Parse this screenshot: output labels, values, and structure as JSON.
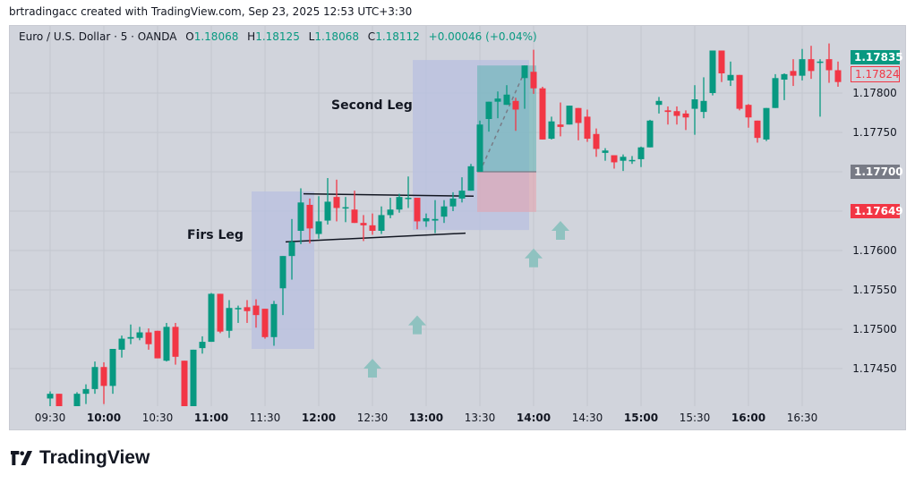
{
  "caption": "brtradingacc created with TradingView.com, Sep 23, 2025 12:53 UTC+3:30",
  "legend": {
    "symbol": "Euro / U.S. Dollar · 5 · OANDA",
    "o_label": "O",
    "o": "1.18068",
    "h_label": "H",
    "h": "1.18125",
    "l_label": "L",
    "l": "1.18068",
    "c_label": "C",
    "c": "1.18112",
    "change": "+0.00046 (+0.04%)"
  },
  "annotations": {
    "first_leg": "Firs Leg",
    "second_leg": "Second Leg"
  },
  "price_tags": {
    "last": "1.17835",
    "prev": "1.17824",
    "entry": "1.17700",
    "stop": "1.17649"
  },
  "colors": {
    "up": "#089981",
    "down": "#f23645",
    "background": "#d1d4dc",
    "grid": "#c3c6ce",
    "leg_box": "#b8c0e0",
    "target_zone": "#5fb3b3",
    "stop_zone": "#e8a0ab",
    "arrow": "#8fc2c0",
    "entry_tag": "#787b86"
  },
  "brand": "TradingView",
  "chart_data": {
    "type": "candlestick",
    "title": "Euro / U.S. Dollar · 5 · OANDA",
    "xlabel": "",
    "ylabel": "",
    "y_ticks": [
      "1.17800",
      "1.17750",
      "1.17700",
      "1.17650",
      "1.17600",
      "1.17550",
      "1.17500",
      "1.17450"
    ],
    "ylim": [
      1.174,
      1.1786
    ],
    "x_ticks": [
      {
        "label": "09:30",
        "bold": false
      },
      {
        "label": "10:00",
        "bold": true
      },
      {
        "label": "10:30",
        "bold": false
      },
      {
        "label": "11:00",
        "bold": true
      },
      {
        "label": "11:30",
        "bold": false
      },
      {
        "label": "12:00",
        "bold": true
      },
      {
        "label": "12:30",
        "bold": false
      },
      {
        "label": "13:00",
        "bold": true
      },
      {
        "label": "13:30",
        "bold": false
      },
      {
        "label": "14:00",
        "bold": true
      },
      {
        "label": "14:30",
        "bold": false
      },
      {
        "label": "15:00",
        "bold": true
      },
      {
        "label": "15:30",
        "bold": false
      },
      {
        "label": "16:00",
        "bold": true
      },
      {
        "label": "16:30",
        "bold": false
      }
    ],
    "candles": [
      {
        "t": "09:30",
        "o": 1.17412,
        "h": 1.17421,
        "l": 1.174,
        "c": 1.17418
      },
      {
        "t": "09:35",
        "o": 1.17418,
        "h": 1.17418,
        "l": 1.174,
        "c": 1.174
      },
      {
        "t": "09:40",
        "o": null,
        "h": null,
        "l": null,
        "c": null
      },
      {
        "t": "09:45",
        "o": 1.174,
        "h": 1.1742,
        "l": 1.174,
        "c": 1.17418
      },
      {
        "t": "09:50",
        "o": 1.17418,
        "h": 1.1743,
        "l": 1.17405,
        "c": 1.17424
      },
      {
        "t": "09:55",
        "o": 1.17424,
        "h": 1.17459,
        "l": 1.17418,
        "c": 1.17452
      },
      {
        "t": "10:00",
        "o": 1.17452,
        "h": 1.17458,
        "l": 1.17405,
        "c": 1.17428
      },
      {
        "t": "10:05",
        "o": 1.17428,
        "h": 1.17475,
        "l": 1.17418,
        "c": 1.17475
      },
      {
        "t": "10:10",
        "o": 1.17474,
        "h": 1.17492,
        "l": 1.17464,
        "c": 1.17488
      },
      {
        "t": "10:15",
        "o": 1.17488,
        "h": 1.17506,
        "l": 1.17481,
        "c": 1.1749
      },
      {
        "t": "10:20",
        "o": 1.17489,
        "h": 1.17503,
        "l": 1.17486,
        "c": 1.17496
      },
      {
        "t": "10:25",
        "o": 1.17496,
        "h": 1.17501,
        "l": 1.17474,
        "c": 1.17481
      },
      {
        "t": "10:30",
        "o": 1.17498,
        "h": 1.17498,
        "l": 1.17463,
        "c": 1.17463
      },
      {
        "t": "10:35",
        "o": 1.1746,
        "h": 1.17508,
        "l": 1.17459,
        "c": 1.17503
      },
      {
        "t": "10:40",
        "o": 1.17503,
        "h": 1.17508,
        "l": 1.17455,
        "c": 1.17465
      },
      {
        "t": "10:45",
        "o": 1.1746,
        "h": 1.1746,
        "l": 1.174,
        "c": 1.174
      },
      {
        "t": "10:50",
        "o": 1.174,
        "h": 1.17474,
        "l": 1.174,
        "c": 1.17474
      },
      {
        "t": "10:55",
        "o": 1.17476,
        "h": 1.17491,
        "l": 1.17469,
        "c": 1.17484
      },
      {
        "t": "11:00",
        "o": 1.17484,
        "h": 1.17546,
        "l": 1.17484,
        "c": 1.17545
      },
      {
        "t": "11:05",
        "o": 1.17545,
        "h": 1.17545,
        "l": 1.17495,
        "c": 1.17497
      },
      {
        "t": "11:10",
        "o": 1.17498,
        "h": 1.17537,
        "l": 1.17489,
        "c": 1.17527
      },
      {
        "t": "11:15",
        "o": 1.17527,
        "h": 1.1753,
        "l": 1.17508,
        "c": 1.17527
      },
      {
        "t": "11:20",
        "o": 1.17528,
        "h": 1.17537,
        "l": 1.17508,
        "c": 1.17523
      },
      {
        "t": "11:25",
        "o": 1.1753,
        "h": 1.17538,
        "l": 1.17502,
        "c": 1.17518
      },
      {
        "t": "11:30",
        "o": 1.17526,
        "h": 1.17526,
        "l": 1.17488,
        "c": 1.1749
      },
      {
        "t": "11:35",
        "o": 1.1749,
        "h": 1.17536,
        "l": 1.17479,
        "c": 1.17532
      },
      {
        "t": "11:40",
        "o": 1.17552,
        "h": 1.17593,
        "l": 1.17518,
        "c": 1.17593
      },
      {
        "t": "11:45",
        "o": 1.17593,
        "h": 1.1764,
        "l": 1.17563,
        "c": 1.17611
      },
      {
        "t": "11:50",
        "o": 1.17625,
        "h": 1.17679,
        "l": 1.17608,
        "c": 1.17661
      },
      {
        "t": "11:55",
        "o": 1.17658,
        "h": 1.17666,
        "l": 1.17609,
        "c": 1.17628
      },
      {
        "t": "12:00",
        "o": 1.17621,
        "h": 1.17669,
        "l": 1.17615,
        "c": 1.17637
      },
      {
        "t": "12:05",
        "o": 1.17638,
        "h": 1.17692,
        "l": 1.17633,
        "c": 1.17662
      },
      {
        "t": "12:10",
        "o": 1.17668,
        "h": 1.1769,
        "l": 1.17637,
        "c": 1.17654
      },
      {
        "t": "12:15",
        "o": 1.17655,
        "h": 1.17668,
        "l": 1.17636,
        "c": 1.17655
      },
      {
        "t": "12:20",
        "o": 1.17652,
        "h": 1.17676,
        "l": 1.1764,
        "c": 1.17635
      },
      {
        "t": "12:25",
        "o": 1.17635,
        "h": 1.17645,
        "l": 1.17612,
        "c": 1.17632
      },
      {
        "t": "12:30",
        "o": 1.17632,
        "h": 1.17647,
        "l": 1.1762,
        "c": 1.17625
      },
      {
        "t": "12:35",
        "o": 1.17625,
        "h": 1.17656,
        "l": 1.17621,
        "c": 1.17645
      },
      {
        "t": "12:40",
        "o": 1.17645,
        "h": 1.17667,
        "l": 1.17641,
        "c": 1.17652
      },
      {
        "t": "12:45",
        "o": 1.17652,
        "h": 1.17672,
        "l": 1.17648,
        "c": 1.17668
      },
      {
        "t": "12:50",
        "o": 1.17667,
        "h": 1.17694,
        "l": 1.17654,
        "c": 1.17667
      },
      {
        "t": "12:55",
        "o": 1.17667,
        "h": 1.17665,
        "l": 1.17627,
        "c": 1.17637
      },
      {
        "t": "13:00",
        "o": 1.17637,
        "h": 1.17647,
        "l": 1.1763,
        "c": 1.17641
      },
      {
        "t": "13:05",
        "o": 1.17638,
        "h": 1.17664,
        "l": 1.17622,
        "c": 1.1764
      },
      {
        "t": "13:10",
        "o": 1.17643,
        "h": 1.17664,
        "l": 1.17635,
        "c": 1.17656
      },
      {
        "t": "13:15",
        "o": 1.17656,
        "h": 1.17674,
        "l": 1.1765,
        "c": 1.17666
      },
      {
        "t": "13:20",
        "o": 1.17666,
        "h": 1.17693,
        "l": 1.17661,
        "c": 1.17676
      },
      {
        "t": "13:25",
        "o": 1.17676,
        "h": 1.1771,
        "l": 1.17676,
        "c": 1.17707
      },
      {
        "t": "13:30",
        "o": 1.177,
        "h": 1.17765,
        "l": 1.177,
        "c": 1.1776
      },
      {
        "t": "13:35",
        "o": 1.17767,
        "h": 1.17783,
        "l": 1.17751,
        "c": 1.17789
      },
      {
        "t": "13:40",
        "o": 1.17789,
        "h": 1.17802,
        "l": 1.17768,
        "c": 1.17793
      },
      {
        "t": "13:45",
        "o": 1.17785,
        "h": 1.1781,
        "l": 1.17786,
        "c": 1.17798
      },
      {
        "t": "13:50",
        "o": 1.1779,
        "h": 1.17794,
        "l": 1.17752,
        "c": 1.17779
      },
      {
        "t": "13:55",
        "o": 1.17819,
        "h": 1.17831,
        "l": 1.1778,
        "c": 1.17835
      },
      {
        "t": "14:00",
        "o": 1.17827,
        "h": 1.17855,
        "l": 1.17799,
        "c": 1.17806
      },
      {
        "t": "14:05",
        "o": 1.17806,
        "h": 1.17808,
        "l": 1.17741,
        "c": 1.17741
      },
      {
        "t": "14:10",
        "o": 1.17742,
        "h": 1.1777,
        "l": 1.17741,
        "c": 1.17764
      },
      {
        "t": "14:15",
        "o": 1.1776,
        "h": 1.17788,
        "l": 1.17745,
        "c": 1.17757
      },
      {
        "t": "14:20",
        "o": 1.1776,
        "h": 1.17784,
        "l": 1.1776,
        "c": 1.17784
      },
      {
        "t": "14:25",
        "o": 1.17781,
        "h": 1.17781,
        "l": 1.1774,
        "c": 1.17762
      },
      {
        "t": "14:30",
        "o": 1.1777,
        "h": 1.17779,
        "l": 1.17738,
        "c": 1.17742
      },
      {
        "t": "14:35",
        "o": 1.17748,
        "h": 1.17755,
        "l": 1.17719,
        "c": 1.17729
      },
      {
        "t": "14:40",
        "o": 1.17724,
        "h": 1.1773,
        "l": 1.17714,
        "c": 1.17727
      },
      {
        "t": "14:45",
        "o": 1.17721,
        "h": 1.17721,
        "l": 1.17704,
        "c": 1.17712
      },
      {
        "t": "14:50",
        "o": 1.17714,
        "h": 1.17722,
        "l": 1.17701,
        "c": 1.17719
      },
      {
        "t": "14:55",
        "o": 1.17715,
        "h": 1.1772,
        "l": 1.1771,
        "c": 1.17715
      },
      {
        "t": "15:00",
        "o": 1.17716,
        "h": 1.17732,
        "l": 1.17706,
        "c": 1.17731
      },
      {
        "t": "15:05",
        "o": 1.17731,
        "h": 1.17766,
        "l": 1.17731,
        "c": 1.17765
      },
      {
        "t": "15:10",
        "o": 1.17785,
        "h": 1.17795,
        "l": 1.17774,
        "c": 1.1779
      },
      {
        "t": "15:15",
        "o": 1.17778,
        "h": 1.17783,
        "l": 1.1776,
        "c": 1.17776
      },
      {
        "t": "15:20",
        "o": 1.17777,
        "h": 1.17783,
        "l": 1.1776,
        "c": 1.17771
      },
      {
        "t": "15:25",
        "o": 1.17774,
        "h": 1.17778,
        "l": 1.17753,
        "c": 1.17769
      },
      {
        "t": "15:30",
        "o": 1.1778,
        "h": 1.1781,
        "l": 1.17747,
        "c": 1.17792
      },
      {
        "t": "15:35",
        "o": 1.17776,
        "h": 1.1782,
        "l": 1.17768,
        "c": 1.1779
      },
      {
        "t": "15:40",
        "o": 1.178,
        "h": 1.17841,
        "l": 1.17797,
        "c": 1.17854
      },
      {
        "t": "15:45",
        "o": 1.17854,
        "h": 1.17845,
        "l": 1.17814,
        "c": 1.17825
      },
      {
        "t": "15:50",
        "o": 1.17816,
        "h": 1.1784,
        "l": 1.17809,
        "c": 1.17823
      },
      {
        "t": "15:55",
        "o": 1.17823,
        "h": 1.17805,
        "l": 1.17778,
        "c": 1.1778
      },
      {
        "t": "16:00",
        "o": 1.17785,
        "h": 1.17786,
        "l": 1.17756,
        "c": 1.17769
      },
      {
        "t": "16:05",
        "o": 1.17765,
        "h": 1.17763,
        "l": 1.17737,
        "c": 1.17743
      },
      {
        "t": "16:10",
        "o": 1.17741,
        "h": 1.17748,
        "l": 1.17739,
        "c": 1.17781
      },
      {
        "t": "16:15",
        "o": 1.17781,
        "h": 1.17824,
        "l": 1.17781,
        "c": 1.17819
      },
      {
        "t": "16:20",
        "o": 1.17817,
        "h": 1.17825,
        "l": 1.17791,
        "c": 1.17824
      },
      {
        "t": "16:25",
        "o": 1.17828,
        "h": 1.17843,
        "l": 1.17809,
        "c": 1.17822
      },
      {
        "t": "16:30",
        "o": 1.17822,
        "h": 1.17856,
        "l": 1.17816,
        "c": 1.17843
      },
      {
        "t": "16:35",
        "o": 1.17843,
        "h": 1.1786,
        "l": 1.17818,
        "c": 1.17828
      },
      {
        "t": "16:40",
        "o": 1.1784,
        "h": 1.17843,
        "l": 1.1777,
        "c": 1.1784
      },
      {
        "t": "16:45",
        "o": 1.17843,
        "h": 1.17863,
        "l": 1.17813,
        "c": 1.17829
      },
      {
        "t": "16:50",
        "o": 1.17829,
        "h": 1.1784,
        "l": 1.17808,
        "c": 1.17814
      },
      {
        "t": "16:55",
        "o": 1.17823,
        "h": 1.17845,
        "l": 1.1782,
        "c": 1.17838
      },
      {
        "t": "17:00",
        "o": 1.17838,
        "h": 1.17852,
        "l": 1.17825,
        "c": 1.17842
      },
      {
        "t": "17:05",
        "o": 1.17835,
        "h": 1.17835,
        "l": 1.17818,
        "c": 1.17824
      }
    ],
    "drawings": {
      "first_leg_box": {
        "x1": "11:25",
        "x2": "11:55",
        "top": 1.17675,
        "bottom": 1.17475
      },
      "second_leg_box": {
        "x1": "12:55",
        "x2": "13:55",
        "top": 1.17842,
        "bottom": 1.17626
      },
      "consolidation_upper": {
        "x1": "11:55",
        "x2": "13:25",
        "p1": 1.17672,
        "p2": 1.17669
      },
      "consolidation_lower": {
        "x1": "11:45",
        "x2": "13:15",
        "p1": 1.17611,
        "p2": 1.17622
      },
      "long_position": {
        "x1": "13:30",
        "x2": "14:00",
        "entry": 1.177,
        "target": 1.17835,
        "stop": 1.17649
      },
      "up_arrows": [
        {
          "t": "12:30",
          "p": 1.1745
        },
        {
          "t": "12:55",
          "p": 1.17505
        },
        {
          "t": "14:00",
          "p": 1.1759
        },
        {
          "t": "14:15",
          "p": 1.17625
        }
      ]
    }
  }
}
